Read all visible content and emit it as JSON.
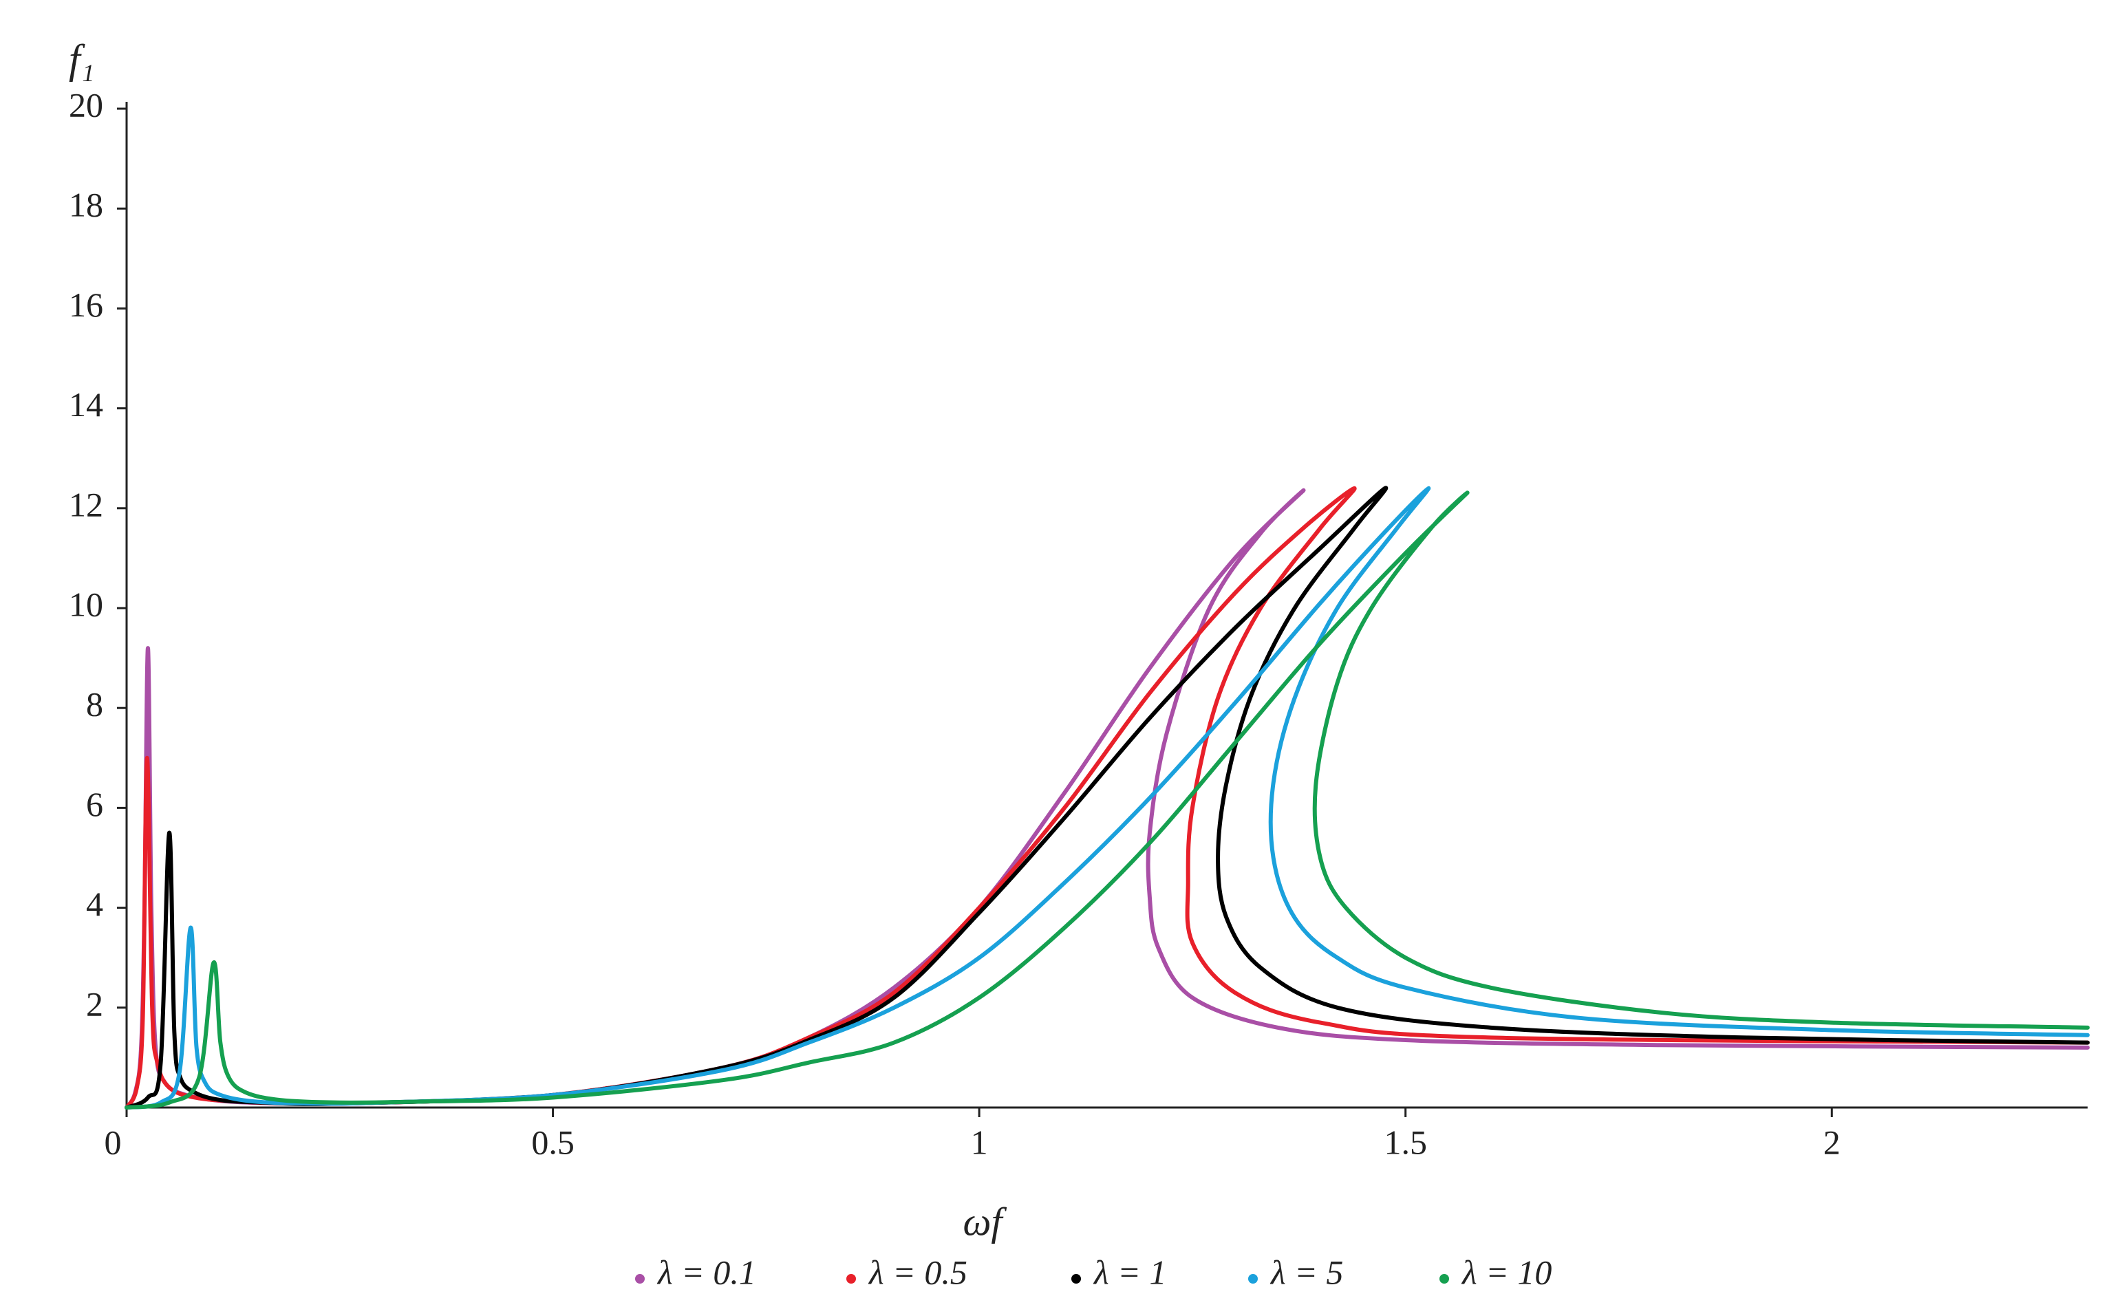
{
  "chart_data": {
    "type": "line",
    "x_label": "ωf",
    "y_label": "f₁",
    "xlim": [
      0,
      2.3
    ],
    "ylim": [
      0,
      20
    ],
    "xticks": [
      0,
      0.5,
      1,
      1.5,
      2
    ],
    "yticks": [
      2,
      4,
      6,
      8,
      10,
      12,
      14,
      16,
      18,
      20
    ],
    "grid": false,
    "legend": "bottom",
    "series": [
      {
        "name": "λ = 0.1",
        "color": "#a94fa6",
        "x": [
          0,
          0.01,
          0.017,
          0.021,
          0.025,
          0.029,
          0.034,
          0.045,
          0.07,
          0.12,
          0.2,
          0.3,
          0.5,
          0.7,
          0.8,
          0.9,
          1.0,
          1.1,
          1.2,
          1.3,
          1.38,
          1.33,
          1.27,
          1.22,
          1.2,
          1.2,
          1.21,
          1.25,
          1.35,
          1.5,
          1.8,
          2.3
        ],
        "values": [
          0,
          0.3,
          1.2,
          4,
          9.2,
          4,
          1.2,
          0.5,
          0.25,
          0.12,
          0.08,
          0.1,
          0.25,
          0.8,
          1.4,
          2.4,
          4.0,
          6.3,
          8.8,
          11.0,
          12.35,
          11.5,
          10.0,
          7.5,
          5.5,
          4.2,
          3.2,
          2.2,
          1.6,
          1.35,
          1.25,
          1.2
        ]
      },
      {
        "name": "λ = 0.5",
        "color": "#e8202a",
        "x": [
          0,
          0.012,
          0.019,
          0.024,
          0.03,
          0.036,
          0.05,
          0.08,
          0.13,
          0.2,
          0.3,
          0.5,
          0.7,
          0.8,
          0.9,
          1.0,
          1.1,
          1.2,
          1.3,
          1.38,
          1.44,
          1.4,
          1.33,
          1.28,
          1.25,
          1.245,
          1.25,
          1.3,
          1.4,
          1.6,
          2.3
        ],
        "values": [
          0,
          0.4,
          1.8,
          7.0,
          2.0,
          0.9,
          0.4,
          0.2,
          0.12,
          0.08,
          0.1,
          0.25,
          0.8,
          1.4,
          2.3,
          4.0,
          6.0,
          8.3,
          10.3,
          11.6,
          12.4,
          11.6,
          10.0,
          8.2,
          6.0,
          4.5,
          3.3,
          2.3,
          1.7,
          1.4,
          1.3
        ]
      },
      {
        "name": "λ = 1",
        "color": "#000000",
        "x": [
          0,
          0.025,
          0.04,
          0.05,
          0.056,
          0.063,
          0.08,
          0.11,
          0.16,
          0.25,
          0.5,
          0.7,
          0.8,
          0.9,
          1.0,
          1.1,
          1.2,
          1.3,
          1.4,
          1.476,
          1.44,
          1.37,
          1.32,
          1.29,
          1.28,
          1.29,
          1.33,
          1.42,
          1.6,
          1.9,
          2.3
        ],
        "values": [
          0,
          0.2,
          0.9,
          5.5,
          1.5,
          0.6,
          0.3,
          0.15,
          0.1,
          0.08,
          0.25,
          0.8,
          1.35,
          2.2,
          3.9,
          5.8,
          7.8,
          9.6,
          11.2,
          12.4,
          11.6,
          10.0,
          8.3,
          6.5,
          5.0,
          3.8,
          2.8,
          2.0,
          1.6,
          1.4,
          1.3
        ]
      },
      {
        "name": "λ = 5",
        "color": "#1ba1dc",
        "x": [
          0,
          0.04,
          0.062,
          0.075,
          0.082,
          0.092,
          0.11,
          0.15,
          0.22,
          0.3,
          0.5,
          0.7,
          0.8,
          0.9,
          1.0,
          1.1,
          1.2,
          1.3,
          1.4,
          1.48,
          1.527,
          1.49,
          1.42,
          1.37,
          1.345,
          1.345,
          1.37,
          1.42,
          1.5,
          1.7,
          2.0,
          2.3
        ],
        "values": [
          0,
          0.1,
          0.7,
          3.6,
          1.2,
          0.5,
          0.25,
          0.12,
          0.08,
          0.1,
          0.25,
          0.75,
          1.3,
          2.0,
          3.0,
          4.5,
          6.2,
          8.1,
          10.1,
          11.6,
          12.4,
          11.6,
          10.0,
          8.2,
          6.5,
          5.0,
          3.8,
          3.0,
          2.4,
          1.8,
          1.55,
          1.45
        ]
      },
      {
        "name": "λ = 10",
        "color": "#15a050",
        "x": [
          0,
          0.05,
          0.085,
          0.102,
          0.11,
          0.12,
          0.14,
          0.18,
          0.25,
          0.35,
          0.5,
          0.7,
          0.8,
          0.9,
          1.0,
          1.1,
          1.2,
          1.3,
          1.4,
          1.5,
          1.572,
          1.53,
          1.46,
          1.42,
          1.395,
          1.4,
          1.43,
          1.5,
          1.6,
          1.8,
          2.0,
          2.3
        ],
        "values": [
          0,
          0.1,
          0.6,
          2.9,
          1.3,
          0.6,
          0.3,
          0.15,
          0.1,
          0.12,
          0.2,
          0.55,
          0.9,
          1.3,
          2.2,
          3.6,
          5.3,
          7.3,
          9.3,
          11.1,
          12.3,
          11.6,
          10.0,
          8.5,
          6.5,
          5.0,
          4.0,
          3.0,
          2.4,
          1.9,
          1.7,
          1.6
        ]
      }
    ]
  }
}
